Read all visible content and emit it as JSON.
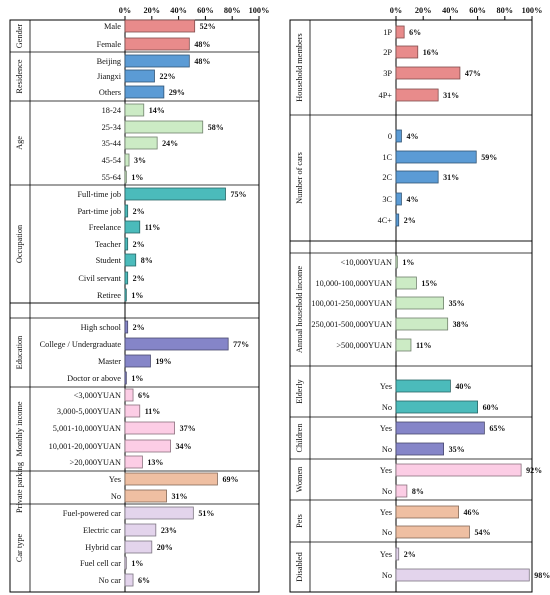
{
  "chart_data": [
    {
      "type": "bar",
      "orientation": "horizontal",
      "x_ticks": [
        "0%",
        "20%",
        "40%",
        "60%",
        "80%",
        "100%"
      ],
      "xlim": [
        0,
        100
      ],
      "grid": false,
      "groups": [
        {
          "name": "Gender",
          "color": "#e88b8b",
          "categories": [
            "Male",
            "Female"
          ],
          "values": [
            52,
            48
          ]
        },
        {
          "name": "Residence",
          "color": "#5b9bd5",
          "categories": [
            "Beijing",
            "Jiangxi",
            "Others"
          ],
          "values": [
            48,
            22,
            29
          ]
        },
        {
          "name": "Age",
          "color": "#ccebc5",
          "categories": [
            "18-24",
            "25-34",
            "35-44",
            "45-54",
            "55-64"
          ],
          "values": [
            14,
            58,
            24,
            3,
            1
          ]
        },
        {
          "name": "Occupation",
          "color": "#4bbbbb",
          "categories": [
            "Full-time job",
            "Part-time job",
            "Freelance",
            "Teacher",
            "Student",
            "Civil servant",
            "Retiree"
          ],
          "values": [
            75,
            2,
            11,
            2,
            8,
            2,
            1
          ]
        },
        {
          "name": "Education",
          "color": "#8585c8",
          "categories": [
            "High school",
            "College / Undergraduate",
            "Master",
            "Doctor or above"
          ],
          "values": [
            2,
            77,
            19,
            1
          ]
        },
        {
          "name": "Monthly income",
          "color": "#fccde5",
          "categories": [
            "<3,000YUAN",
            "3,000-5,000YUAN",
            "5,001-10,000YUAN",
            "10,001-20,000YUAN",
            ">20,000YUAN"
          ],
          "values": [
            6,
            11,
            37,
            34,
            13
          ]
        },
        {
          "name": "Private parking",
          "color": "#efbfa2",
          "categories": [
            "Yes",
            "No"
          ],
          "values": [
            69,
            31
          ]
        },
        {
          "name": "Car type",
          "color": "#e3d4ec",
          "categories": [
            "Fuel-powered car",
            "Electric car",
            "Hybrid car",
            "Fuel cell car",
            "No car"
          ],
          "values": [
            51,
            23,
            20,
            1,
            6
          ]
        }
      ]
    },
    {
      "type": "bar",
      "orientation": "horizontal",
      "x_ticks": [
        "0%",
        "20%",
        "40%",
        "60%",
        "80%",
        "100%"
      ],
      "xlim": [
        0,
        100
      ],
      "grid": false,
      "groups": [
        {
          "name": "Household members",
          "color": "#e88b8b",
          "categories": [
            "1P",
            "2P",
            "3P",
            "4P+"
          ],
          "values": [
            6,
            16,
            47,
            31
          ]
        },
        {
          "name": "Number of cars",
          "color": "#5b9bd5",
          "categories": [
            "0",
            "1C",
            "2C",
            "3C",
            "4C+"
          ],
          "values": [
            4,
            59,
            31,
            4,
            2
          ]
        },
        {
          "name": "Annual household income",
          "color": "#ccebc5",
          "categories": [
            "<10,000YUAN",
            "10,000-100,000YUAN",
            "100,001-250,000YUAN",
            "250,001-500,000YUAN",
            ">500,000YUAN"
          ],
          "values": [
            1,
            15,
            35,
            38,
            11
          ]
        },
        {
          "name": "Elderly",
          "color": "#4bbbbb",
          "categories": [
            "Yes",
            "No"
          ],
          "values": [
            40,
            60
          ]
        },
        {
          "name": "Children",
          "color": "#8585c8",
          "categories": [
            "Yes",
            "No"
          ],
          "values": [
            65,
            35
          ]
        },
        {
          "name": "Women",
          "color": "#fccde5",
          "categories": [
            "Yes",
            "No"
          ],
          "values": [
            92,
            8
          ]
        },
        {
          "name": "Pets",
          "color": "#efbfa2",
          "categories": [
            "Yes",
            "No"
          ],
          "values": [
            46,
            54
          ]
        },
        {
          "name": "Disabled",
          "color": "#e3d4ec",
          "categories": [
            "Yes",
            "No"
          ],
          "values": [
            2,
            98
          ]
        }
      ]
    }
  ]
}
